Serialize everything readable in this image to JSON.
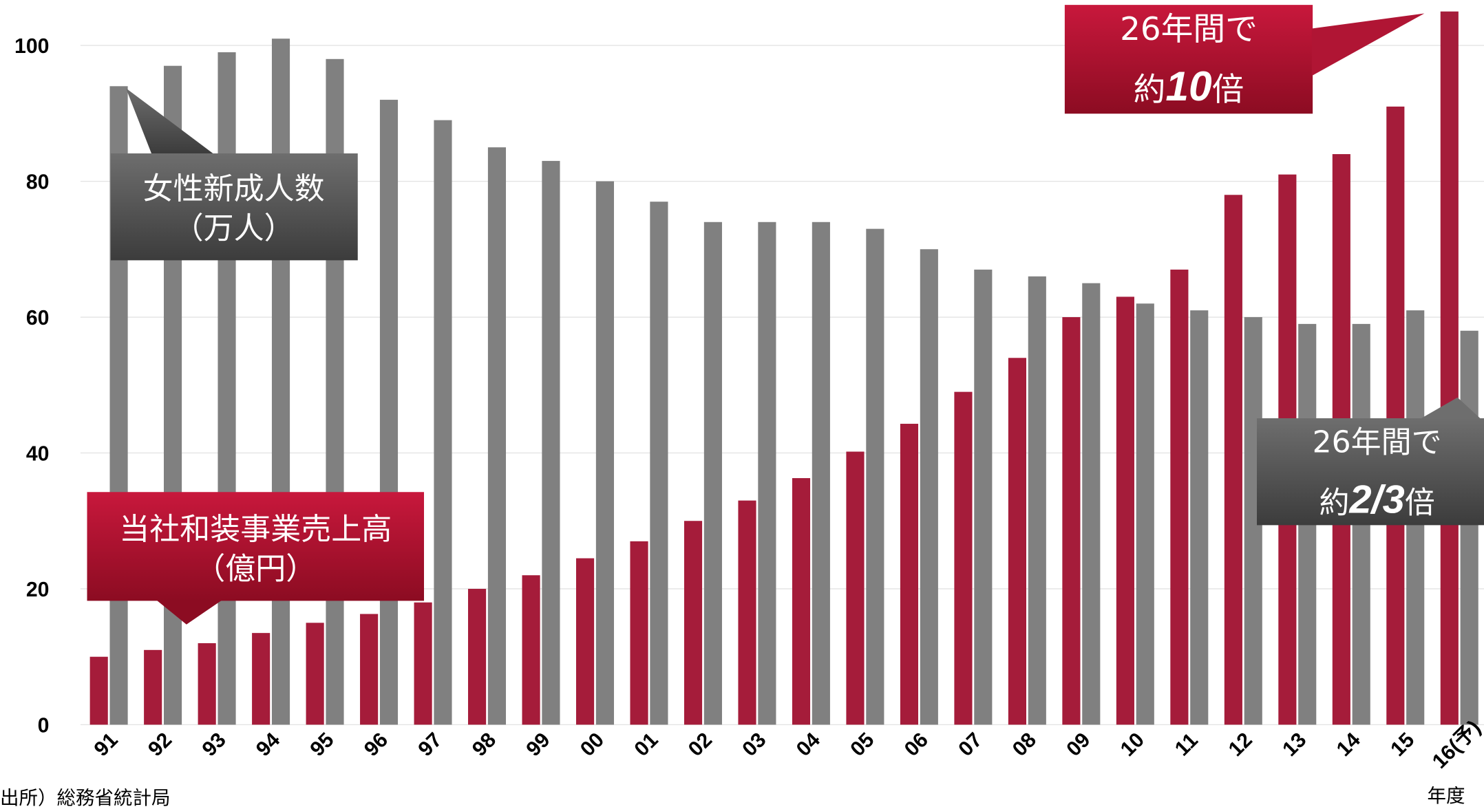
{
  "chart_data": {
    "type": "bar",
    "categories": [
      "91",
      "92",
      "93",
      "94",
      "95",
      "96",
      "97",
      "98",
      "99",
      "00",
      "01",
      "02",
      "03",
      "04",
      "05",
      "06",
      "07",
      "08",
      "09",
      "10",
      "11",
      "12",
      "13",
      "14",
      "15",
      "16(予)"
    ],
    "series": [
      {
        "name": "当社和装事業売上高",
        "unit": "（億円）",
        "color": "#a51c3a",
        "values": [
          10,
          11,
          12,
          13.5,
          15,
          16.3,
          18,
          20,
          22,
          24.5,
          27,
          30,
          33,
          36.3,
          40.2,
          44.3,
          49,
          54,
          60,
          63,
          67,
          78,
          81,
          84,
          91,
          105
        ]
      },
      {
        "name": "女性新成人数",
        "unit": "（万人）",
        "color": "#808080",
        "values": [
          94,
          97,
          99,
          101,
          98,
          92,
          89,
          85,
          83,
          80,
          77,
          74,
          74,
          74,
          73,
          70,
          67,
          66,
          65,
          62,
          61,
          60,
          59,
          59,
          61,
          58
        ]
      }
    ],
    "ylim": [
      0,
      105
    ],
    "yticks": [
      0,
      20,
      40,
      60,
      80,
      100
    ],
    "grid": true,
    "x_label": "年度",
    "annotations": [
      {
        "line1": "26年間で",
        "prefix": "約",
        "emph": "10",
        "suffix": "倍"
      },
      {
        "line1": "26年間で",
        "prefix": "約",
        "emph": "2/3",
        "suffix": "倍"
      }
    ],
    "source": "出所）総務省統計局"
  }
}
